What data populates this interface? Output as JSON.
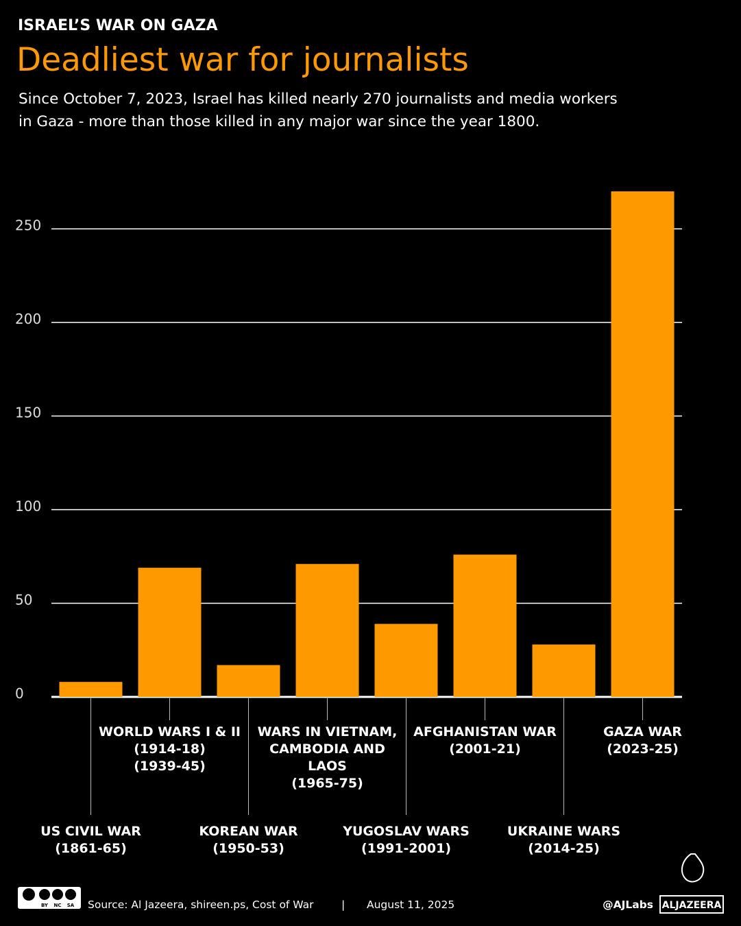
{
  "header": {
    "kicker": "ISRAEL’S WAR ON GAZA",
    "subtitle": [
      "Since October 7, 2023, Israel has killed nearly 270 journalists and media workers",
      "in Gaza - more than those killed in any major war since the year 1800."
    ]
  },
  "chart_data": {
    "type": "bar",
    "title": "Deadliest war for journalists",
    "categories": [
      [
        "US CIVIL WAR",
        "(1861-65)"
      ],
      [
        "WORLD WARS I & II",
        "(1914-18)",
        "(1939-45)"
      ],
      [
        "KOREAN WAR",
        "(1950-53)"
      ],
      [
        "WARS IN VIETNAM,",
        "CAMBODIA AND",
        "LAOS",
        "(1965-75)"
      ],
      [
        "YUGOSLAV WARS",
        "(1991-2001)"
      ],
      [
        "AFGHANISTAN WAR",
        "(2001-21)"
      ],
      [
        "UKRAINE WARS",
        "(2014-25)"
      ],
      [
        "GAZA WAR",
        "(2023-25)"
      ]
    ],
    "values": [
      8,
      69,
      17,
      71,
      39,
      76,
      28,
      270
    ],
    "color": "#ff9900",
    "ylim": [
      0,
      270
    ],
    "yticks": [
      0,
      50,
      100,
      150,
      200,
      250
    ],
    "grid": true
  },
  "footer": {
    "license": [
      "BY",
      "NC",
      "SA"
    ],
    "source": "Source:  Al Jazeera, shireen.ps, Cost of War",
    "separator": "|",
    "date": "August 11, 2025",
    "handle": "@AJLabs",
    "logo": "ALJAZEERA"
  }
}
